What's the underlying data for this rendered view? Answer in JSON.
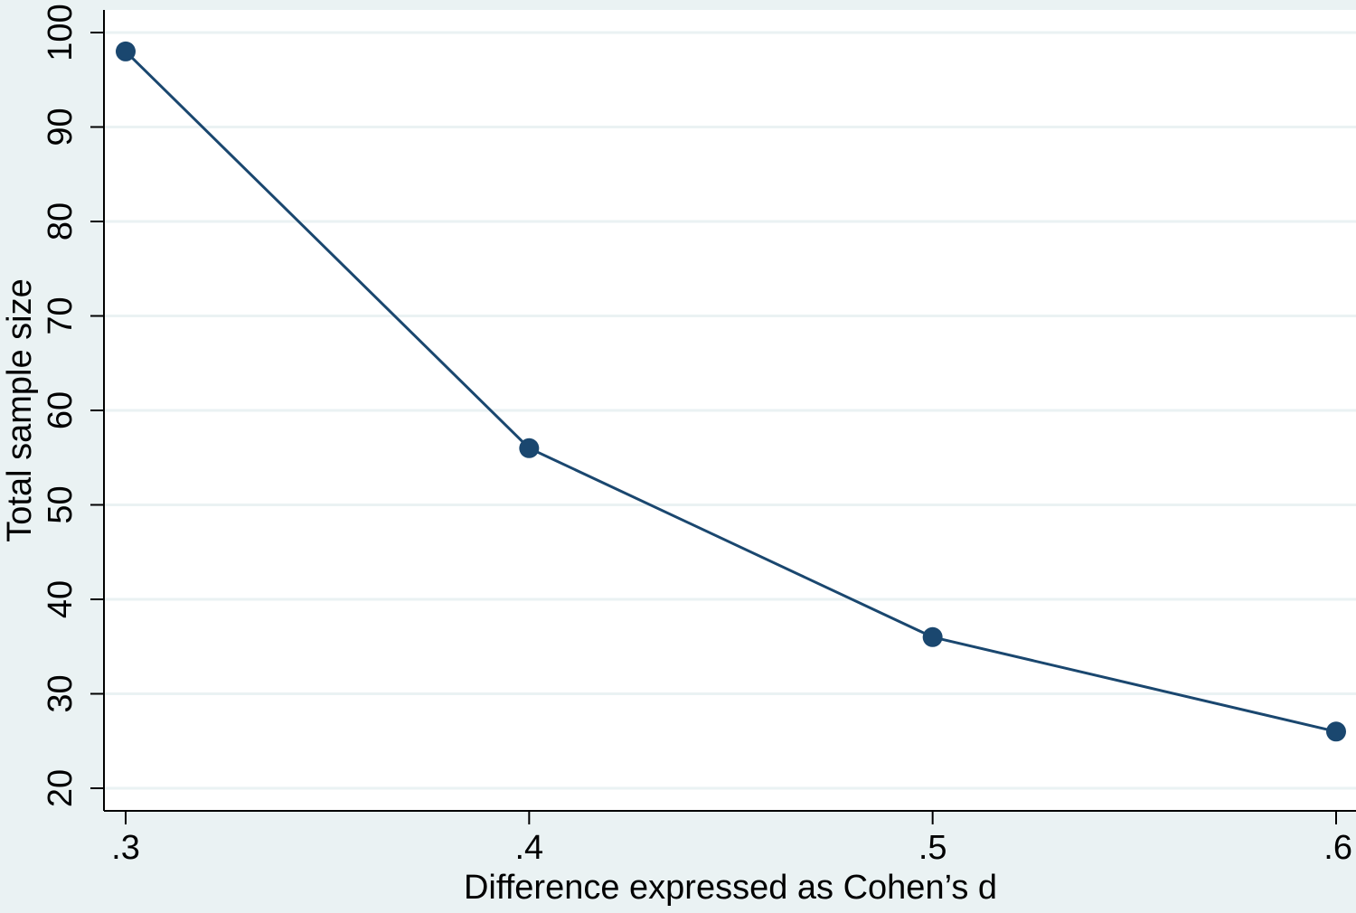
{
  "colors": {
    "page_background": "#eaf2f3",
    "plot_background": "#ffffff",
    "gridline": "#eaf2f3",
    "axis": "#000000",
    "series": "#1a476f"
  },
  "chart_data": {
    "type": "line",
    "xlabel": "Difference expressed as Cohen’s d",
    "ylabel": "Total sample size",
    "xlim": [
      0.3,
      0.6
    ],
    "ylim": [
      20,
      100
    ],
    "x_ticks": [
      {
        "value": 0.3,
        "label": ".3"
      },
      {
        "value": 0.4,
        "label": ".4"
      },
      {
        "value": 0.5,
        "label": ".5"
      },
      {
        "value": 0.6,
        "label": ".6"
      }
    ],
    "y_ticks": [
      {
        "value": 20,
        "label": "20"
      },
      {
        "value": 30,
        "label": "30"
      },
      {
        "value": 40,
        "label": "40"
      },
      {
        "value": 50,
        "label": "50"
      },
      {
        "value": 60,
        "label": "60"
      },
      {
        "value": 70,
        "label": "70"
      },
      {
        "value": 80,
        "label": "80"
      },
      {
        "value": 90,
        "label": "90"
      },
      {
        "value": 100,
        "label": "100"
      }
    ],
    "grid": "horizontal",
    "legend": "none",
    "series": [
      {
        "x": [
          0.3,
          0.4,
          0.5,
          0.6
        ],
        "y": [
          98,
          56,
          36,
          26
        ],
        "marker": "circle"
      }
    ]
  }
}
